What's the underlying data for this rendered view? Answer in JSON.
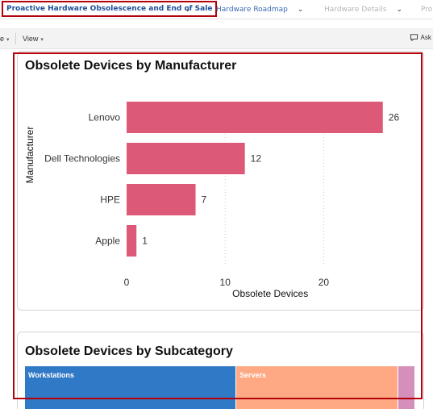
{
  "tabs": [
    {
      "label": "Proactive Hardware Obsolescence and End of Sale",
      "state": "active"
    },
    {
      "label": "Hardware Roadmap",
      "state": "normal"
    },
    {
      "label": "Hardware Details",
      "state": "disabled"
    },
    {
      "label": "Pro",
      "state": "disabled"
    }
  ],
  "toolbar": {
    "left_item": "e",
    "view_label": "View",
    "ask_label": "Ask"
  },
  "panel1": {
    "title": "Obsolete Devices by Manufacturer"
  },
  "chart_data": {
    "type": "bar",
    "orientation": "horizontal",
    "title": "Obsolete Devices by Manufacturer",
    "ylabel": "Manufacturer",
    "xlabel": "Obsolete Devices",
    "categories": [
      "Lenovo",
      "Dell Technologies",
      "HPE",
      "Apple"
    ],
    "values": [
      26,
      12,
      7,
      1
    ],
    "xticks": [
      0,
      10,
      20
    ],
    "xlim": [
      0,
      27
    ],
    "color": "#dc5a77",
    "grid": "vertical dotted"
  },
  "panel2": {
    "title": "Obsolete Devices by Subcategory",
    "treemap": [
      {
        "label": "Workstations",
        "color": "#2f79c6"
      },
      {
        "label": "Servers",
        "color": "#fea983"
      },
      {
        "label": "",
        "color": "#d48fba"
      }
    ]
  }
}
